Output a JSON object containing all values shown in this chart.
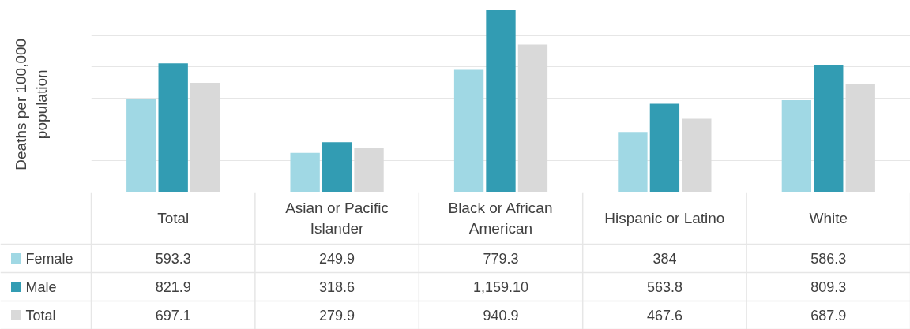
{
  "chart_data": {
    "type": "bar",
    "ylabel": "Deaths per 100,000 population",
    "categories": [
      "Total",
      "Asian or Pacific Islander",
      "Black or African American",
      "Hispanic or Latino",
      "White"
    ],
    "series": [
      {
        "name": "Female",
        "color": "#a0d8e4",
        "values": [
          593.3,
          249.9,
          779.3,
          384,
          586.3
        ],
        "value_labels": [
          "593.3",
          "249.9",
          "779.3",
          "384",
          "586.3"
        ]
      },
      {
        "name": "Male",
        "color": "#329cb3",
        "values": [
          821.9,
          318.6,
          1159.1,
          563.8,
          809.3
        ],
        "value_labels": [
          "821.9",
          "318.6",
          "1,159.10",
          "563.8",
          "809.3"
        ]
      },
      {
        "name": "Total",
        "color": "#d9d9d9",
        "values": [
          697.1,
          279.9,
          940.9,
          467.6,
          687.9
        ],
        "value_labels": [
          "697.1",
          "279.9",
          "940.9",
          "467.6",
          "687.9"
        ]
      }
    ],
    "grid": "y",
    "legend": "bottom left",
    "tick_labels": "x"
  }
}
